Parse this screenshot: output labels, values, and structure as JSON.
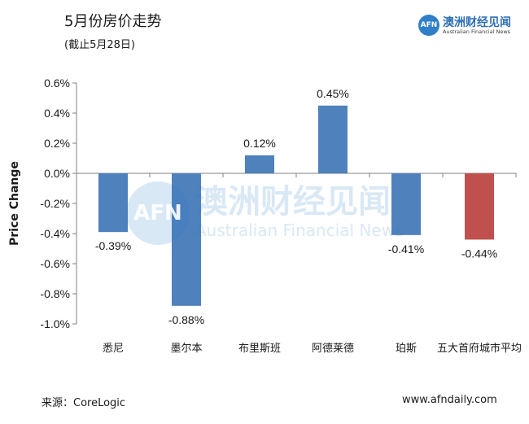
{
  "header": {
    "title": "5月份房价走势",
    "subtitle": "(截止5月28日)"
  },
  "logo": {
    "mark": "AFN",
    "name_cn": "澳洲财经见闻",
    "name_en": "Australian Financial News"
  },
  "watermark": {
    "mark": "AFN",
    "name_cn": "澳洲财经见闻",
    "name_en": "Australian Financial News"
  },
  "footer": {
    "source": "来源：CoreLogic",
    "website": "www.afndaily.com"
  },
  "colors": {
    "bar_default": "#4f81bd",
    "bar_highlight": "#c0504d",
    "axis": "#808080"
  },
  "chart_data": {
    "type": "bar",
    "title": "",
    "xlabel": "",
    "ylabel": "Price Change",
    "categories": [
      "悉尼",
      "墨尔本",
      "布里斯班",
      "阿德莱德",
      "珀斯",
      "五大首府城市平均"
    ],
    "values": [
      -0.39,
      -0.88,
      0.12,
      0.45,
      -0.41,
      -0.44
    ],
    "value_labels": [
      "-0.39%",
      "-0.88%",
      "0.12%",
      "0.45%",
      "-0.41%",
      "-0.44%"
    ],
    "highlight_index": 5,
    "ylim": [
      -1.0,
      0.6
    ],
    "yticks": [
      0.6,
      0.4,
      0.2,
      0.0,
      -0.2,
      -0.4,
      -0.6,
      -0.8,
      -1.0
    ],
    "ytick_labels": [
      "0.6%",
      "0.4%",
      "0.2%",
      "0.0%",
      "-0.2%",
      "-0.4%",
      "-0.6%",
      "-0.8%",
      "-1.0%"
    ],
    "grid": false,
    "legend": "none"
  }
}
